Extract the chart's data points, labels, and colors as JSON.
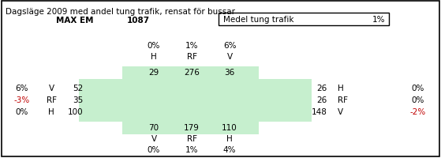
{
  "title": "Dagsläge 2009 med andel tung trafik, rensat för bussar",
  "header_left_label": "MAX EM",
  "header_left_value": "1087",
  "header_right_label": "Medel tung trafik",
  "header_right_value": "1%",
  "green_bg": "#c6efce",
  "white_bg": "#ffffff",
  "outer_border": "#000000",
  "inner_box_border": "#000000",
  "text_color": "#000000",
  "red_text": "#c00000",
  "figsize": [
    5.59,
    2.01
  ],
  "dpi": 100
}
